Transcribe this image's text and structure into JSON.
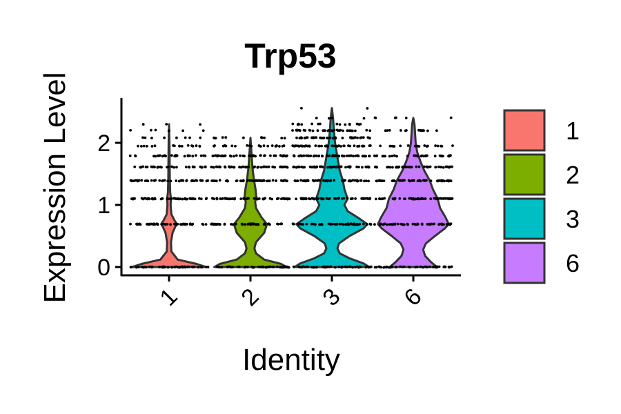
{
  "chart_data": {
    "type": "violin",
    "title": "Trp53",
    "xlabel": "Identity",
    "ylabel": "Expression Level",
    "categories": [
      "1",
      "2",
      "3",
      "6"
    ],
    "colors": [
      "#F8766D",
      "#7CAE00",
      "#00BFC4",
      "#C77CFF"
    ],
    "ylim": [
      -0.1,
      2.7
    ],
    "yticks": [
      0,
      1,
      2
    ],
    "ytick_labels": [
      "0",
      "1",
      "2"
    ],
    "legend": {
      "position": "right",
      "labels": [
        "1",
        "2",
        "3",
        "6"
      ]
    },
    "violins": [
      {
        "name": "1",
        "max": 2.3,
        "profile": [
          [
            0.0,
            0.95
          ],
          [
            0.05,
            0.7
          ],
          [
            0.12,
            0.22
          ],
          [
            0.25,
            0.06
          ],
          [
            0.4,
            0.05
          ],
          [
            0.55,
            0.09
          ],
          [
            0.65,
            0.16
          ],
          [
            0.69,
            0.2
          ],
          [
            0.75,
            0.14
          ],
          [
            0.85,
            0.06
          ],
          [
            1.0,
            0.04
          ],
          [
            1.1,
            0.05
          ],
          [
            1.2,
            0.03
          ],
          [
            1.4,
            0.02
          ],
          [
            1.7,
            0.015
          ],
          [
            2.0,
            0.01
          ],
          [
            2.3,
            0.0
          ]
        ],
        "point_levels": [
          [
            0,
            0.95
          ],
          [
            0.69,
            0.95
          ],
          [
            1.1,
            0.95
          ],
          [
            1.39,
            0.8
          ],
          [
            1.61,
            0.6
          ],
          [
            1.79,
            0.5
          ],
          [
            1.95,
            0.3
          ],
          [
            2.08,
            0.15
          ],
          [
            2.2,
            0.12
          ],
          [
            2.3,
            0.06
          ]
        ]
      },
      {
        "name": "2",
        "max": 2.08,
        "profile": [
          [
            0.0,
            0.92
          ],
          [
            0.05,
            0.78
          ],
          [
            0.12,
            0.35
          ],
          [
            0.22,
            0.14
          ],
          [
            0.3,
            0.1
          ],
          [
            0.4,
            0.14
          ],
          [
            0.55,
            0.35
          ],
          [
            0.69,
            0.42
          ],
          [
            0.8,
            0.28
          ],
          [
            0.95,
            0.14
          ],
          [
            1.05,
            0.12
          ],
          [
            1.12,
            0.15
          ],
          [
            1.25,
            0.13
          ],
          [
            1.4,
            0.09
          ],
          [
            1.6,
            0.05
          ],
          [
            1.8,
            0.03
          ],
          [
            2.08,
            0.0
          ]
        ],
        "point_levels": [
          [
            0,
            0.95
          ],
          [
            0.69,
            0.95
          ],
          [
            1.1,
            0.95
          ],
          [
            1.39,
            0.95
          ],
          [
            1.61,
            0.9
          ],
          [
            1.79,
            0.8
          ],
          [
            1.95,
            0.45
          ],
          [
            2.08,
            0.2
          ]
        ]
      },
      {
        "name": "3",
        "max": 2.56,
        "profile": [
          [
            0.0,
            0.95
          ],
          [
            0.06,
            0.8
          ],
          [
            0.14,
            0.45
          ],
          [
            0.22,
            0.2
          ],
          [
            0.3,
            0.14
          ],
          [
            0.38,
            0.18
          ],
          [
            0.5,
            0.45
          ],
          [
            0.62,
            0.8
          ],
          [
            0.69,
            0.9
          ],
          [
            0.78,
            0.7
          ],
          [
            0.9,
            0.4
          ],
          [
            1.0,
            0.32
          ],
          [
            1.1,
            0.4
          ],
          [
            1.25,
            0.32
          ],
          [
            1.39,
            0.28
          ],
          [
            1.55,
            0.2
          ],
          [
            1.7,
            0.16
          ],
          [
            1.85,
            0.12
          ],
          [
            2.0,
            0.08
          ],
          [
            2.2,
            0.05
          ],
          [
            2.4,
            0.03
          ],
          [
            2.56,
            0.0
          ]
        ],
        "point_levels": [
          [
            0,
            0.95
          ],
          [
            0.69,
            0.95
          ],
          [
            1.1,
            0.95
          ],
          [
            1.39,
            0.95
          ],
          [
            1.61,
            0.95
          ],
          [
            1.79,
            0.95
          ],
          [
            1.95,
            0.9
          ],
          [
            2.08,
            0.8
          ],
          [
            2.2,
            0.6
          ],
          [
            2.3,
            0.3
          ],
          [
            2.4,
            0.08
          ],
          [
            2.56,
            0.04
          ]
        ]
      },
      {
        "name": "6",
        "max": 2.4,
        "profile": [
          [
            0.0,
            0.6
          ],
          [
            0.08,
            0.45
          ],
          [
            0.18,
            0.3
          ],
          [
            0.28,
            0.25
          ],
          [
            0.38,
            0.32
          ],
          [
            0.5,
            0.55
          ],
          [
            0.62,
            0.8
          ],
          [
            0.69,
            0.9
          ],
          [
            0.8,
            0.82
          ],
          [
            0.95,
            0.68
          ],
          [
            1.1,
            0.62
          ],
          [
            1.25,
            0.5
          ],
          [
            1.39,
            0.42
          ],
          [
            1.55,
            0.28
          ],
          [
            1.7,
            0.18
          ],
          [
            1.85,
            0.1
          ],
          [
            2.0,
            0.06
          ],
          [
            2.2,
            0.04
          ],
          [
            2.3,
            0.03
          ],
          [
            2.4,
            0.0
          ]
        ],
        "point_levels": [
          [
            0,
            0.85
          ],
          [
            0.69,
            0.95
          ],
          [
            1.1,
            0.95
          ],
          [
            1.39,
            0.95
          ],
          [
            1.61,
            0.85
          ],
          [
            1.79,
            0.6
          ],
          [
            1.95,
            0.35
          ],
          [
            2.2,
            0.25
          ],
          [
            2.4,
            0.1
          ]
        ]
      }
    ]
  }
}
